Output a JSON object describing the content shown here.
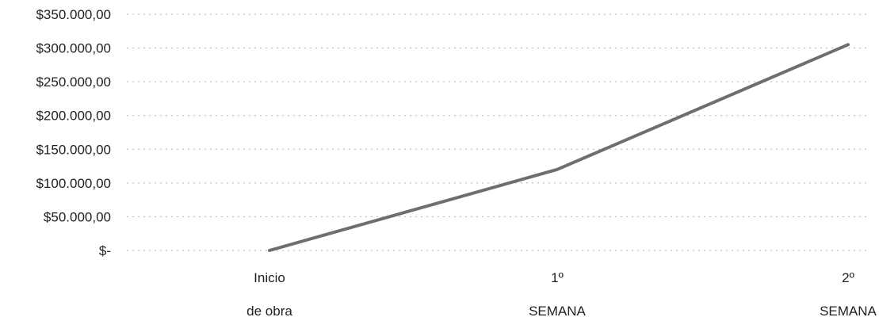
{
  "chart_data": {
    "type": "line",
    "title": "",
    "xlabel": "",
    "ylabel": "",
    "categories": [
      [
        "Inicio",
        "de obra"
      ],
      [
        "1º",
        "SEMANA"
      ],
      [
        "2º",
        "SEMANA"
      ]
    ],
    "series": [
      {
        "values": [
          0,
          120000,
          305000
        ],
        "color": "#6e6e6e"
      }
    ],
    "ylim": [
      0,
      350000
    ],
    "y_ticks": [
      0,
      50000,
      100000,
      150000,
      200000,
      250000,
      300000,
      350000
    ],
    "y_tick_labels": [
      "$-",
      "$50.000,00",
      "$100.000,00",
      "$150.000,00",
      "$200.000,00",
      "$250.000,00",
      "$300.000,00",
      "$350.000,00"
    ],
    "grid": true,
    "legend": "none"
  }
}
